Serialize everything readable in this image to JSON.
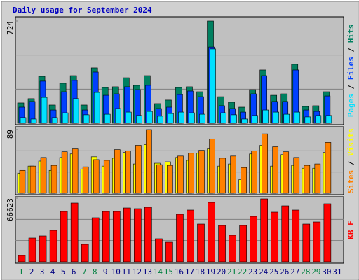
{
  "legend_separator": "/",
  "chart_data": [
    {
      "type": "bar",
      "title": "Daily usage for September 2024",
      "ylim": [
        0,
        724
      ],
      "yticks": [
        724
      ],
      "series": [
        {
          "name": "Hits",
          "color": "#008060",
          "values": [
            144,
            174,
            332,
            129,
            283,
            337,
            129,
            392,
            253,
            258,
            322,
            268,
            337,
            139,
            164,
            253,
            258,
            223,
            724,
            188,
            149,
            114,
            238,
            377,
            198,
            208,
            417,
            119,
            124,
            223,
            null
          ]
        },
        {
          "name": "Files",
          "color": "#0040ff",
          "values": [
            114,
            154,
            298,
            94,
            223,
            303,
            94,
            362,
            198,
            208,
            258,
            238,
            268,
            104,
            114,
            203,
            228,
            188,
            540,
            124,
            104,
            79,
            208,
            337,
            154,
            154,
            377,
            94,
            84,
            193,
            null
          ]
        },
        {
          "name": "Pages",
          "color": "#00e0ff",
          "values": [
            40,
            30,
            183,
            40,
            74,
            174,
            60,
            218,
            64,
            104,
            79,
            55,
            84,
            50,
            69,
            79,
            74,
            64,
            526,
            74,
            60,
            30,
            55,
            94,
            79,
            64,
            79,
            45,
            55,
            55,
            null
          ]
        }
      ]
    },
    {
      "type": "bar",
      "ylim": [
        0,
        89
      ],
      "yticks": [
        89
      ],
      "series": [
        {
          "name": "Visits",
          "color": "#ffff00",
          "values": [
            28,
            38,
            45,
            32,
            50,
            55,
            34,
            51,
            38,
            49,
            57,
            41,
            68,
            42,
            44,
            50,
            46,
            56,
            62,
            38,
            41,
            19,
            55,
            67,
            38,
            54,
            39,
            35,
            35,
            57,
            null
          ]
        },
        {
          "name": "Sites",
          "color": "#ff8000",
          "values": [
            32,
            38,
            50,
            39,
            58,
            62,
            37,
            47,
            46,
            61,
            59,
            67,
            89,
            40,
            39,
            52,
            56,
            60,
            76,
            49,
            52,
            36,
            59,
            83,
            65,
            58,
            50,
            39,
            41,
            71,
            null
          ]
        }
      ]
    },
    {
      "type": "bar",
      "ylim": [
        0,
        66623
      ],
      "yticks": [
        66623
      ],
      "categories": [
        "1",
        "2",
        "3",
        "4",
        "5",
        "6",
        "7",
        "8",
        "9",
        "10",
        "11",
        "12",
        "13",
        "14",
        "15",
        "16",
        "17",
        "18",
        "19",
        "20",
        "21",
        "22",
        "23",
        "24",
        "25",
        "26",
        "27",
        "28",
        "29",
        "30",
        "31"
      ],
      "category_colors": [
        "#008040",
        "#000080",
        "#000080",
        "#000080",
        "#000080",
        "#000080",
        "#008040",
        "#008040",
        "#000080",
        "#000080",
        "#000080",
        "#000080",
        "#000080",
        "#008040",
        "#008040",
        "#000080",
        "#000080",
        "#000080",
        "#000080",
        "#000080",
        "#008040",
        "#008040",
        "#000080",
        "#000080",
        "#000080",
        "#000080",
        "#000080",
        "#008040",
        "#008040",
        "#000080",
        "#000080"
      ],
      "series": [
        {
          "name": "KB F",
          "color": "#ff0000",
          "values": [
            6590,
            24890,
            27090,
            32940,
            52710,
            61500,
            18300,
            46120,
            52710,
            52710,
            56370,
            55640,
            57100,
            24160,
            20500,
            49780,
            54170,
            39530,
            62230,
            38070,
            27820,
            38070,
            47590,
            65890,
            51980,
            58570,
            54170,
            39530,
            41730,
            60760,
            null
          ]
        }
      ]
    }
  ]
}
